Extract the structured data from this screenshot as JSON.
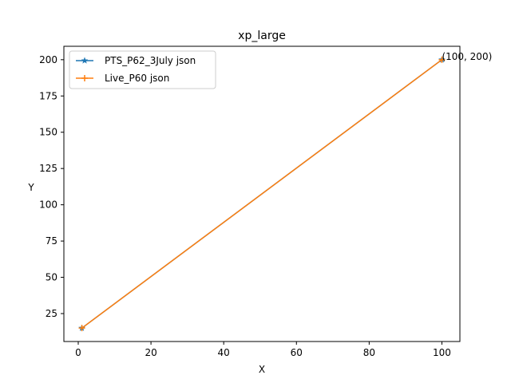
{
  "chart_data": {
    "type": "line",
    "title": "xp_large",
    "xlabel": "X",
    "ylabel": "Y",
    "xlim": [
      -3.95,
      104.95
    ],
    "ylim": [
      5.75,
      209.25
    ],
    "xticks": [
      0,
      20,
      40,
      60,
      80,
      100
    ],
    "yticks": [
      25,
      50,
      75,
      100,
      125,
      150,
      175,
      200
    ],
    "grid": false,
    "legend_position": "upper-left",
    "series": [
      {
        "name": "PTS_P62_3July json",
        "color": "#1f77b4",
        "marker": "star",
        "x": [
          1,
          100
        ],
        "y": [
          15,
          200
        ]
      },
      {
        "name": "Live_P60 json",
        "color": "#ff7f0e",
        "marker": "plus",
        "x": [
          1,
          100
        ],
        "y": [
          15,
          200
        ]
      }
    ],
    "annotations": [
      {
        "text": "(100, 200)",
        "x": 100,
        "y": 200
      }
    ]
  }
}
